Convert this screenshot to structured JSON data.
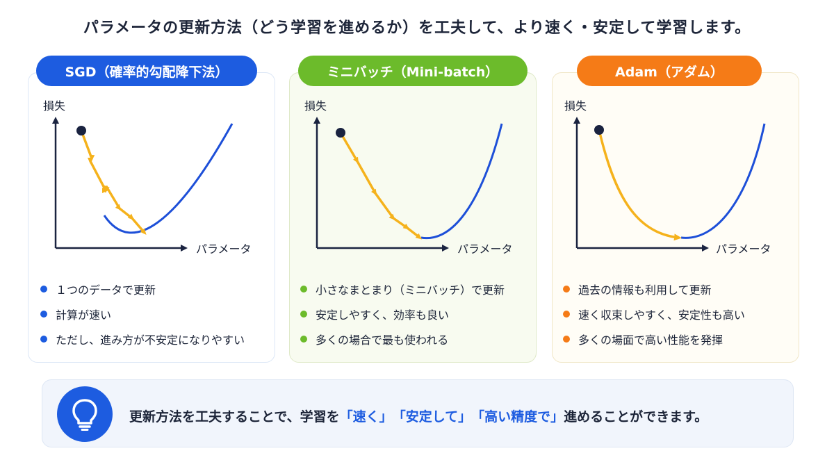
{
  "title": "パラメータの更新方法（どう学習を進めるか）を工夫して、より速く・安定して学習します。",
  "cards": [
    {
      "name": "SGD（確率的勾配降下法）",
      "color": "#1d5ce0",
      "ylabel": "損失",
      "xlabel": "パラメータ",
      "path_style": "zigzag",
      "bullets": [
        "１つのデータで更新",
        "計算が速い",
        "ただし、進み方が不安定になりやすい"
      ]
    },
    {
      "name": "ミニバッチ（Mini-batch）",
      "color": "#6cbb2b",
      "ylabel": "損失",
      "xlabel": "パラメータ",
      "path_style": "slight-zigzag",
      "bullets": [
        "小さなまとまり（ミニバッチ）で更新",
        "安定しやすく、効率も良い",
        "多くの場合で最も使われる"
      ]
    },
    {
      "name": "Adam（アダム）",
      "color": "#f57b17",
      "ylabel": "損失",
      "xlabel": "パラメータ",
      "path_style": "smooth",
      "bullets": [
        "過去の情報も利用して更新",
        "速く収束しやすく、安定性も高い",
        "多くの場面で高い性能を発揮"
      ]
    }
  ],
  "banner": {
    "icon": "lightbulb-icon",
    "pre": "更新方法を工夫することで、学習を",
    "q1": "「速く」",
    "q2": "「安定して」",
    "q3": "「高い精度で」",
    "post": "進めることができます。"
  },
  "colors": {
    "curve": "#1d4fd8",
    "path": "#f5b21c",
    "start_point": "#1a2340",
    "axis": "#1a2340"
  }
}
